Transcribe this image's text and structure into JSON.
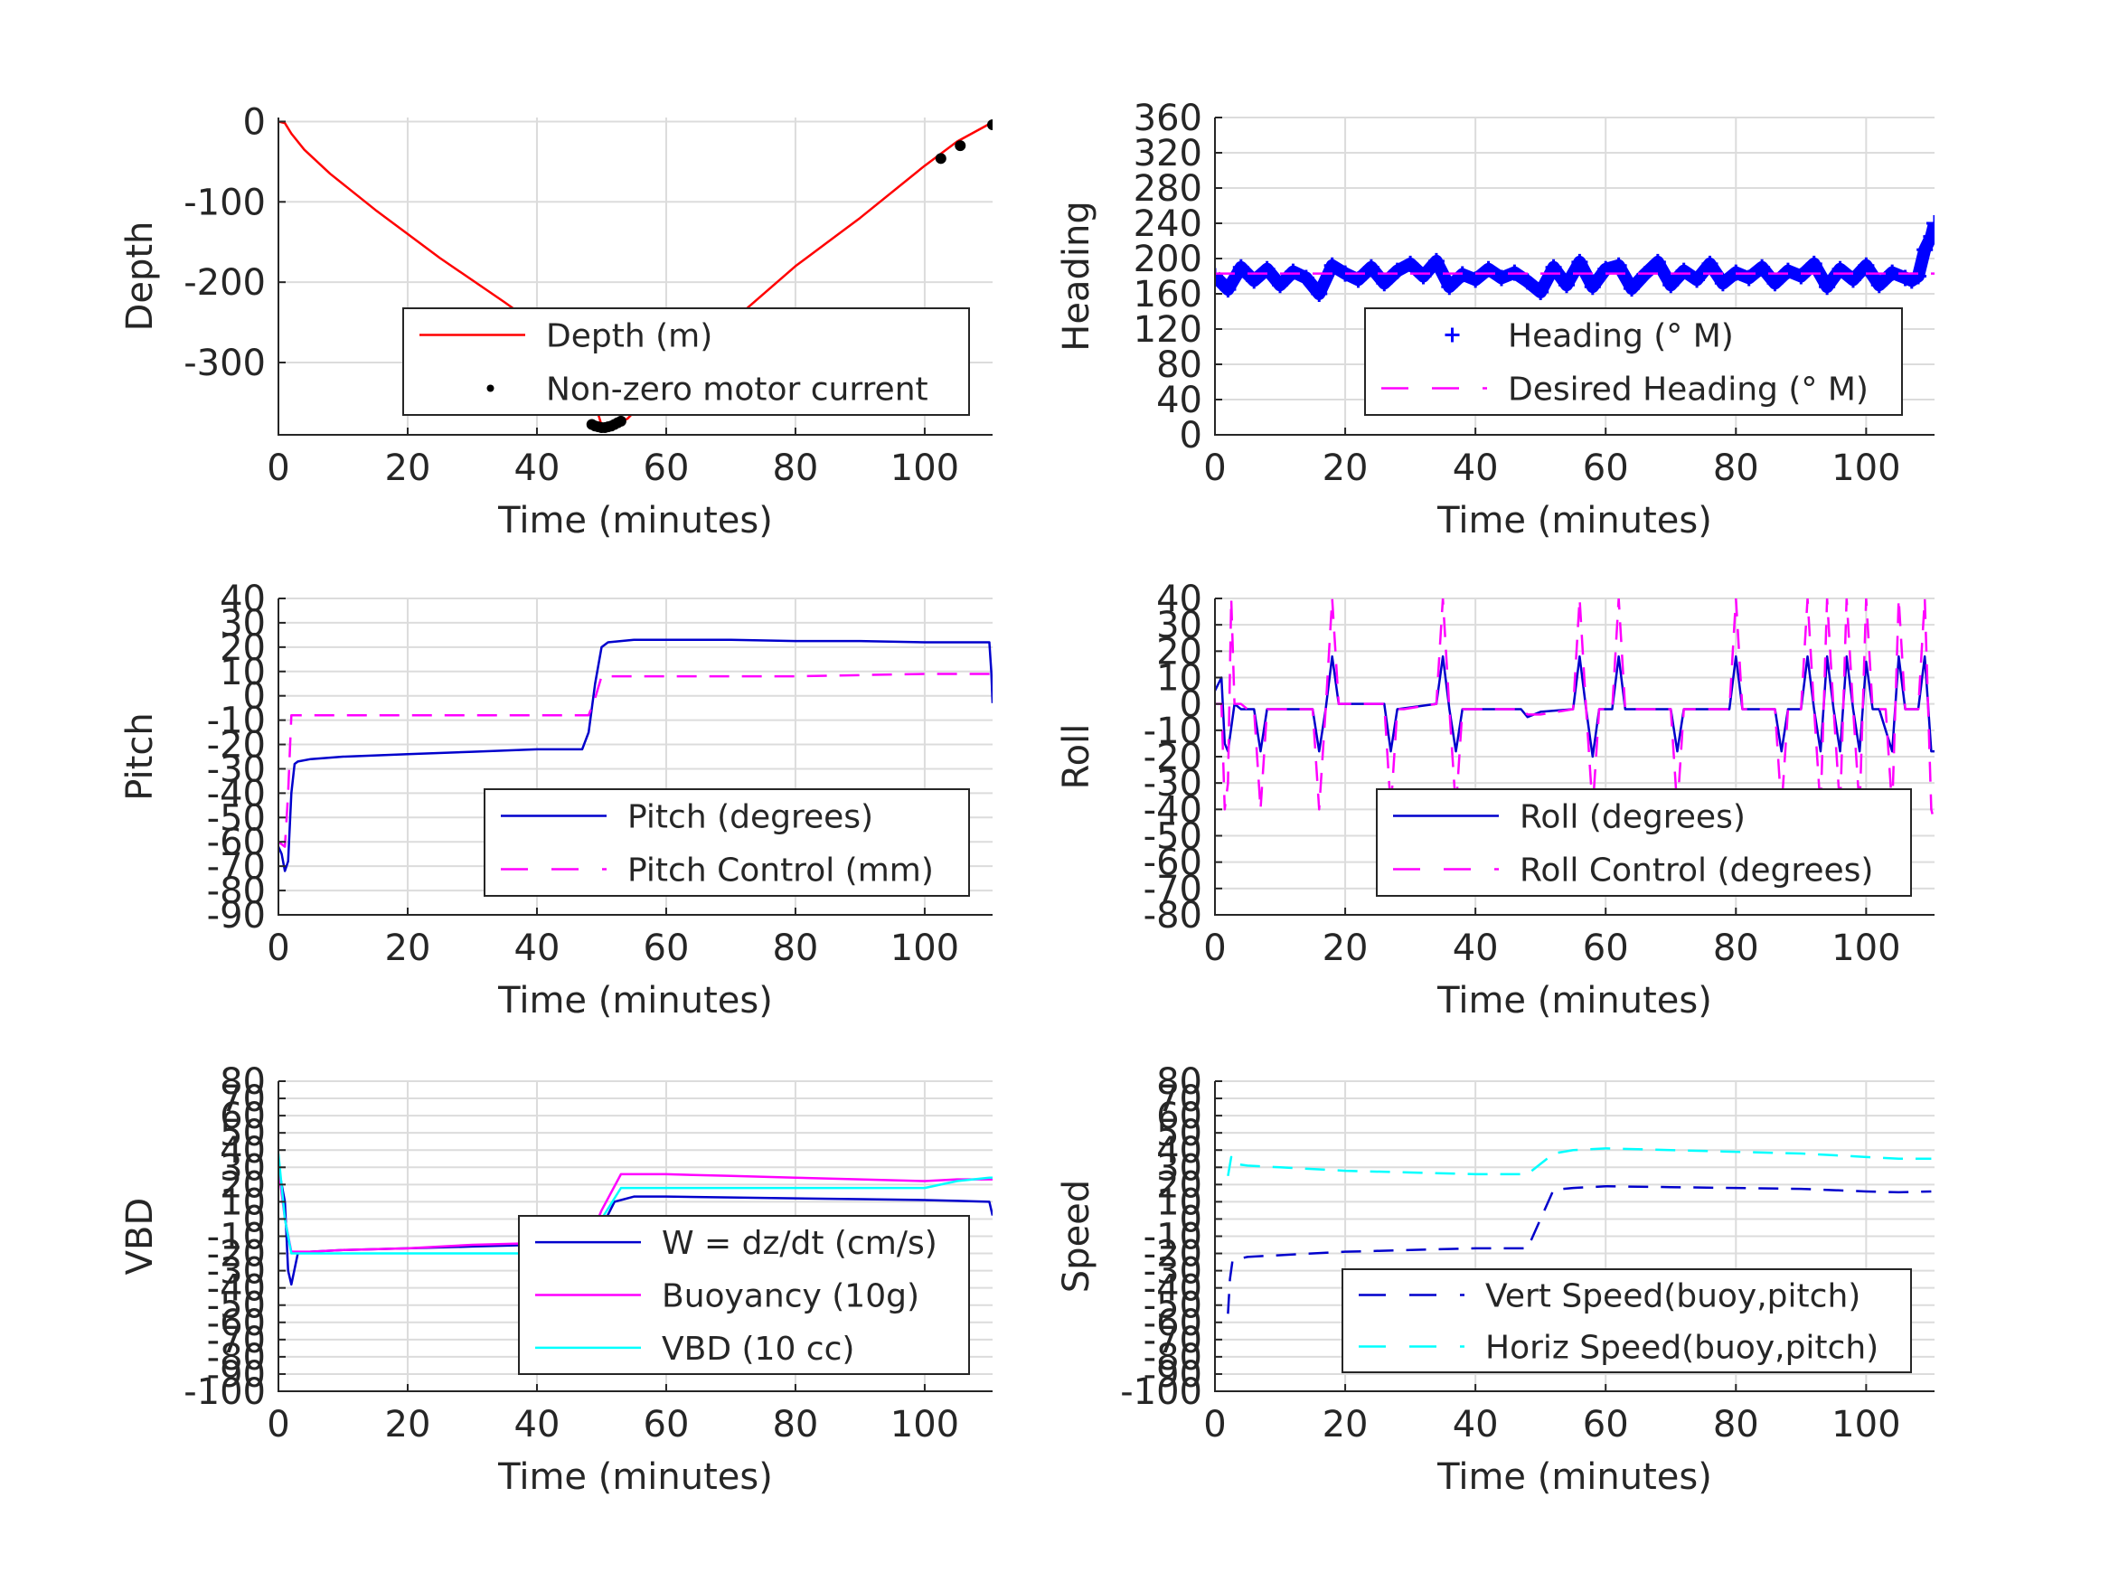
{
  "chart_data": [
    {
      "id": "depth",
      "type": "line",
      "xlabel": "Time (minutes)",
      "ylabel": "Depth",
      "xlim": [
        0,
        110.5
      ],
      "ylim": [
        -390,
        5
      ],
      "xticks": [
        0,
        20,
        40,
        60,
        80,
        100
      ],
      "yticks": [
        0,
        -100,
        -200,
        -300
      ],
      "grid": true,
      "legend": {
        "position": "bottom-right"
      },
      "series": [
        {
          "name": "Depth (m)",
          "style": "solid",
          "color": "#ff0000",
          "x": [
            0,
            1,
            2,
            4,
            8,
            15,
            25,
            35,
            42,
            46,
            48,
            50,
            52,
            54,
            60,
            70,
            80,
            90,
            100,
            105,
            110
          ],
          "y": [
            0,
            -2,
            -15,
            -35,
            -65,
            -110,
            -170,
            -225,
            -265,
            -295,
            -325,
            -378,
            -377,
            -370,
            -320,
            -250,
            -180,
            -120,
            -55,
            -25,
            -3
          ]
        },
        {
          "name": "Non-zero motor current",
          "style": "dots",
          "color": "#000000",
          "x": [
            48.5,
            49,
            49.5,
            50,
            50.5,
            51,
            51.5,
            52,
            52.5,
            53,
            102.5,
            105.5,
            110.5
          ],
          "y": [
            -377,
            -379,
            -380,
            -381,
            -381,
            -380,
            -379,
            -377,
            -375,
            -373,
            -46,
            -30,
            -4
          ]
        }
      ]
    },
    {
      "id": "heading",
      "type": "line",
      "xlabel": "Time (minutes)",
      "ylabel": "Heading",
      "xlim": [
        0,
        110.5
      ],
      "ylim": [
        0,
        360
      ],
      "xticks": [
        0,
        20,
        40,
        60,
        80,
        100
      ],
      "yticks": [
        0,
        40,
        80,
        120,
        160,
        200,
        240,
        280,
        320,
        360
      ],
      "grid": true,
      "legend": {
        "position": "bottom-right"
      },
      "series": [
        {
          "name": "Heading (° M)",
          "style": "plus",
          "color": "#0000ff",
          "x": [
            0,
            2,
            4,
            6,
            8,
            10,
            12,
            14,
            16,
            18,
            20,
            22,
            24,
            26,
            28,
            30,
            32,
            34,
            36,
            38,
            40,
            42,
            44,
            46,
            48,
            50,
            52,
            54,
            56,
            58,
            60,
            62,
            64,
            66,
            68,
            70,
            72,
            74,
            76,
            78,
            80,
            82,
            84,
            86,
            88,
            90,
            92,
            94,
            96,
            98,
            100,
            102,
            104,
            106,
            107,
            108,
            109,
            110,
            110.5
          ],
          "y": [
            180,
            165,
            190,
            175,
            188,
            170,
            185,
            178,
            160,
            192,
            183,
            176,
            190,
            172,
            186,
            194,
            180,
            197,
            168,
            182,
            176,
            188,
            178,
            184,
            174,
            162,
            190,
            170,
            196,
            168,
            188,
            192,
            166,
            182,
            196,
            170,
            186,
            176,
            194,
            172,
            184,
            178,
            190,
            172,
            186,
            180,
            194,
            168,
            188,
            176,
            192,
            170,
            184,
            178,
            175,
            180,
            210,
            225,
            240
          ]
        },
        {
          "name": "Desired Heading (° M)",
          "style": "dashed",
          "color": "#ff00ff",
          "x": [
            0,
            110.5
          ],
          "y": [
            183,
            183
          ]
        }
      ]
    },
    {
      "id": "pitch",
      "type": "line",
      "xlabel": "Time (minutes)",
      "ylabel": "Pitch",
      "xlim": [
        0,
        110.5
      ],
      "ylim": [
        -90,
        40
      ],
      "xticks": [
        0,
        20,
        40,
        60,
        80,
        100
      ],
      "yticks": [
        40,
        30,
        20,
        10,
        0,
        -10,
        -20,
        -30,
        -40,
        -50,
        -60,
        -70,
        -80,
        -90
      ],
      "grid": true,
      "legend": {
        "position": "bottom-right"
      },
      "series": [
        {
          "name": "Pitch (degrees)",
          "style": "solid",
          "color": "#0000cc",
          "x": [
            0,
            0.5,
            1,
            1.5,
            2,
            2.5,
            3,
            5,
            10,
            20,
            30,
            40,
            47,
            48,
            49,
            50,
            51,
            55,
            60,
            70,
            80,
            90,
            100,
            105,
            110,
            110.3,
            110.5
          ],
          "y": [
            -62,
            -65,
            -72,
            -68,
            -40,
            -28,
            -27,
            -26,
            -25,
            -24,
            -23,
            -22,
            -22,
            -15,
            5,
            20,
            22,
            23,
            23,
            23,
            22.5,
            22.5,
            22,
            22,
            22,
            10,
            -3
          ]
        },
        {
          "name": "Pitch Control (mm)",
          "style": "dashed",
          "color": "#ff00ff",
          "x": [
            0,
            1,
            1.5,
            2,
            10,
            20,
            30,
            40,
            48,
            49,
            50,
            60,
            70,
            80,
            90,
            100,
            110,
            110.5
          ],
          "y": [
            -60,
            -62,
            -40,
            -8,
            -8,
            -8,
            -8,
            -8,
            -8,
            -1,
            8,
            8,
            8,
            8,
            8.5,
            9,
            9,
            9
          ]
        }
      ]
    },
    {
      "id": "roll",
      "type": "line",
      "xlabel": "Time (minutes)",
      "ylabel": "Roll",
      "xlim": [
        0,
        110.5
      ],
      "ylim": [
        -80,
        40
      ],
      "xticks": [
        0,
        20,
        40,
        60,
        80,
        100
      ],
      "yticks": [
        40,
        30,
        20,
        10,
        0,
        -10,
        -20,
        -30,
        -40,
        -50,
        -60,
        -70,
        -80
      ],
      "grid": true,
      "legend": {
        "position": "bottom-right"
      },
      "series": [
        {
          "name": "Roll (degrees)",
          "style": "solid",
          "color": "#0000cc",
          "x": [
            0,
            1,
            1.5,
            2,
            3,
            4,
            6,
            7,
            8,
            9,
            15,
            16,
            17,
            18,
            19,
            26,
            27,
            28,
            34,
            35,
            36,
            37,
            38,
            47,
            48,
            50,
            55,
            56,
            57,
            58,
            59,
            61,
            62,
            63,
            64,
            70,
            71,
            72,
            79,
            80,
            81,
            86,
            87,
            88,
            90,
            91,
            92,
            93,
            94,
            95,
            96,
            97,
            98,
            99,
            100,
            101,
            102,
            104,
            105,
            106,
            108,
            109,
            110,
            110.5
          ],
          "y": [
            5,
            10,
            -15,
            -18,
            0,
            -2,
            -2,
            -18,
            -2,
            -2,
            -2,
            -18,
            -2,
            18,
            0,
            0,
            -18,
            -2,
            0,
            18,
            -2,
            -18,
            -2,
            -2,
            -5,
            -3,
            -2,
            18,
            -2,
            -20,
            -2,
            -2,
            18,
            -2,
            -2,
            -2,
            -18,
            -2,
            -2,
            18,
            -2,
            -2,
            -18,
            -2,
            -2,
            18,
            -2,
            -18,
            18,
            -2,
            -18,
            18,
            -2,
            -18,
            16,
            -2,
            -2,
            -18,
            18,
            -2,
            -2,
            18,
            -18,
            -18
          ]
        },
        {
          "name": "Roll Control (degrees)",
          "style": "dashed",
          "color": "#ff00ff",
          "x": [
            0,
            1,
            1.5,
            2,
            2.5,
            3,
            4,
            5,
            6,
            7,
            8,
            9,
            10,
            15,
            16,
            17,
            18,
            19,
            20,
            26,
            27,
            28,
            29,
            34,
            35,
            36,
            37,
            38,
            39,
            47,
            48,
            50,
            55,
            56,
            57,
            58,
            59,
            60,
            61,
            62,
            63,
            64,
            65,
            70,
            71,
            72,
            73,
            79,
            80,
            81,
            82,
            86,
            87,
            88,
            89,
            90,
            91,
            92,
            93,
            94,
            95,
            96,
            97,
            98,
            99,
            100,
            101,
            102,
            103,
            104,
            105,
            106,
            107,
            108,
            109,
            110,
            110.5
          ],
          "y": [
            0,
            0,
            -40,
            -30,
            40,
            0,
            0,
            -2,
            -2,
            -40,
            -2,
            -2,
            -2,
            -2,
            -40,
            -2,
            40,
            0,
            0,
            0,
            -40,
            -2,
            -2,
            0,
            40,
            -2,
            -40,
            -2,
            -2,
            -2,
            -4,
            -4,
            -2,
            40,
            -2,
            -40,
            -2,
            -2,
            -2,
            40,
            -2,
            -2,
            -2,
            -2,
            -40,
            -2,
            -2,
            -2,
            40,
            -2,
            -2,
            -2,
            -40,
            -2,
            -2,
            -2,
            40,
            -2,
            -40,
            40,
            -2,
            -40,
            40,
            -2,
            -40,
            40,
            -2,
            -2,
            -2,
            -40,
            40,
            -2,
            -2,
            -2,
            40,
            -40,
            -45
          ]
        }
      ]
    },
    {
      "id": "vbd",
      "type": "line",
      "xlabel": "Time (minutes)",
      "ylabel": "VBD",
      "xlim": [
        0,
        110.5
      ],
      "ylim": [
        -100,
        80
      ],
      "xticks": [
        0,
        20,
        40,
        60,
        80,
        100
      ],
      "yticks": [
        80,
        70,
        60,
        50,
        40,
        30,
        20,
        10,
        0,
        -10,
        -20,
        -30,
        -40,
        -50,
        -60,
        -70,
        -80,
        -90,
        -100
      ],
      "grid": true,
      "legend": {
        "position": "bottom-right"
      },
      "series": [
        {
          "name": "W = dz/dt (cm/s)",
          "style": "solid",
          "color": "#0000cc",
          "x": [
            0,
            1,
            1.5,
            2,
            3,
            5,
            10,
            20,
            30,
            40,
            48,
            50,
            52,
            55,
            60,
            70,
            80,
            90,
            100,
            105,
            110,
            110.5
          ],
          "y": [
            30,
            10,
            -30,
            -38,
            -20,
            -19,
            -18,
            -17,
            -16,
            -15,
            -14,
            -5,
            10,
            13,
            13,
            12.5,
            12,
            11.5,
            11,
            10.5,
            10,
            2
          ]
        },
        {
          "name": "Buoyancy (10g)",
          "style": "solid",
          "color": "#ff00ff",
          "x": [
            0,
            1,
            2,
            3,
            5,
            10,
            20,
            30,
            40,
            48,
            50,
            53,
            55,
            60,
            70,
            80,
            90,
            100,
            105,
            110,
            110.5
          ],
          "y": [
            30,
            0,
            -19,
            -19,
            -19,
            -18,
            -17,
            -15,
            -14,
            -13,
            5,
            26,
            26,
            26,
            25,
            24,
            23,
            22,
            23,
            23,
            23
          ]
        },
        {
          "name": "VBD (10 cc)",
          "style": "solid",
          "color": "#00ffff",
          "x": [
            0,
            1,
            2,
            3,
            5,
            10,
            20,
            30,
            40,
            48,
            50,
            53,
            55,
            60,
            70,
            80,
            90,
            100,
            105,
            110,
            110.5
          ],
          "y": [
            38,
            0,
            -20,
            -20,
            -20,
            -20,
            -20,
            -20,
            -20,
            -20,
            0,
            18,
            18,
            18,
            18,
            18,
            18,
            18,
            22,
            24,
            24
          ]
        }
      ]
    },
    {
      "id": "speed",
      "type": "line",
      "xlabel": "Time (minutes)",
      "ylabel": "Speed",
      "xlim": [
        0,
        110.5
      ],
      "ylim": [
        -100,
        80
      ],
      "xticks": [
        0,
        20,
        40,
        60,
        80,
        100
      ],
      "yticks": [
        80,
        70,
        60,
        50,
        40,
        30,
        20,
        10,
        0,
        -10,
        -20,
        -30,
        -40,
        -50,
        -60,
        -70,
        -80,
        -90,
        -100
      ],
      "grid": true,
      "legend": {
        "position": "bottom-right"
      },
      "series": [
        {
          "name": "Vert Speed(buoy,pitch)",
          "style": "dashed",
          "color": "#0000cc",
          "x": [
            2,
            2.3,
            2.7,
            5,
            10,
            20,
            30,
            40,
            48,
            52,
            55,
            60,
            70,
            80,
            90,
            100,
            105,
            110
          ],
          "y": [
            -55,
            -35,
            -24,
            -22,
            -21,
            -19,
            -18,
            -17,
            -17,
            17,
            18,
            19,
            18.5,
            18,
            17.5,
            16,
            15.5,
            16
          ]
        },
        {
          "name": "Horiz Speed(buoy,pitch)",
          "style": "dashed",
          "color": "#00ffff",
          "x": [
            2,
            2.5,
            3,
            5,
            10,
            20,
            30,
            40,
            48,
            52,
            55,
            60,
            70,
            80,
            90,
            100,
            105,
            110
          ],
          "y": [
            25,
            36,
            32,
            31,
            30,
            28,
            27,
            26,
            26,
            38,
            40,
            41,
            40,
            39,
            38,
            36,
            35,
            35
          ]
        }
      ]
    }
  ]
}
